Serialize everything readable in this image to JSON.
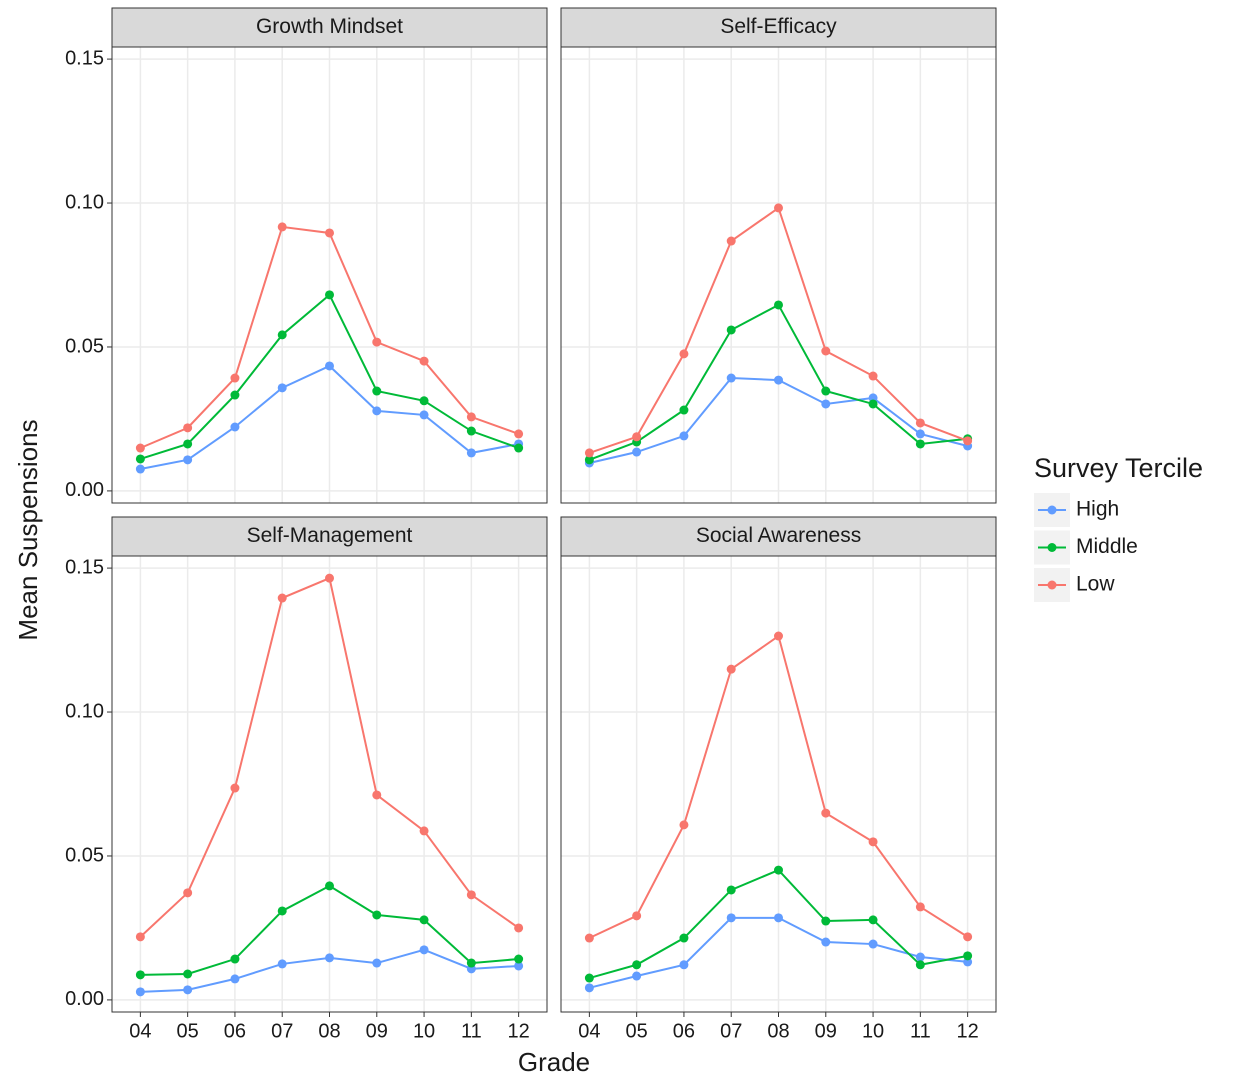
{
  "y_label": "Mean Suspensions",
  "x_label": "Grade",
  "legend_title": "Survey Tercile",
  "legend": "right",
  "chart_data": [
    {
      "type": "line",
      "title": "Growth Mindset",
      "grid": true,
      "categories": [
        "04",
        "05",
        "06",
        "07",
        "08",
        "09",
        "10",
        "11",
        "12"
      ],
      "ylim": [
        -0.0042,
        0.1542
      ],
      "yticks": [
        {
          "value": 0,
          "label": "0.00"
        },
        {
          "value": 0.05,
          "label": "0.05"
        },
        {
          "value": 0.1,
          "label": "0.10"
        },
        {
          "value": 0.15,
          "label": "0.15"
        }
      ],
      "series": [
        {
          "name": "High",
          "color": "#619CFF",
          "values": [
            0.0076,
            0.0108,
            0.0222,
            0.0358,
            0.0434,
            0.0278,
            0.0264,
            0.0132,
            0.0163
          ]
        },
        {
          "name": "Middle",
          "color": "#00BA38",
          "values": [
            0.0111,
            0.0163,
            0.0333,
            0.0542,
            0.0681,
            0.0347,
            0.0313,
            0.0208,
            0.0149
          ]
        },
        {
          "name": "Low",
          "color": "#F8766D",
          "values": [
            0.0149,
            0.0219,
            0.0392,
            0.0917,
            0.0896,
            0.0517,
            0.0451,
            0.0257,
            0.0198
          ]
        }
      ]
    },
    {
      "type": "line",
      "title": "Self-Efficacy",
      "grid": true,
      "categories": [
        "04",
        "05",
        "06",
        "07",
        "08",
        "09",
        "10",
        "11",
        "12"
      ],
      "ylim": [
        -0.0042,
        0.1542
      ],
      "yticks": [
        {
          "value": 0,
          "label": "0.00"
        },
        {
          "value": 0.05,
          "label": "0.05"
        },
        {
          "value": 0.1,
          "label": "0.10"
        },
        {
          "value": 0.15,
          "label": "0.15"
        }
      ],
      "series": [
        {
          "name": "High",
          "color": "#619CFF",
          "values": [
            0.0097,
            0.0135,
            0.0191,
            0.0392,
            0.0385,
            0.0302,
            0.0323,
            0.0198,
            0.0156
          ]
        },
        {
          "name": "Middle",
          "color": "#00BA38",
          "values": [
            0.0108,
            0.017,
            0.0281,
            0.0559,
            0.0646,
            0.0347,
            0.0302,
            0.0163,
            0.0181
          ]
        },
        {
          "name": "Low",
          "color": "#F8766D",
          "values": [
            0.0132,
            0.0188,
            0.0476,
            0.0868,
            0.0983,
            0.0486,
            0.0399,
            0.0236,
            0.0174
          ]
        }
      ]
    },
    {
      "type": "line",
      "title": "Self-Management",
      "grid": true,
      "categories": [
        "04",
        "05",
        "06",
        "07",
        "08",
        "09",
        "10",
        "11",
        "12"
      ],
      "ylim": [
        -0.0042,
        0.1542
      ],
      "yticks": [
        {
          "value": 0,
          "label": "0.00"
        },
        {
          "value": 0.05,
          "label": "0.05"
        },
        {
          "value": 0.1,
          "label": "0.10"
        },
        {
          "value": 0.15,
          "label": "0.15"
        }
      ],
      "series": [
        {
          "name": "High",
          "color": "#619CFF",
          "values": [
            0.0028,
            0.0035,
            0.0073,
            0.0125,
            0.0146,
            0.0128,
            0.0174,
            0.0108,
            0.0118
          ]
        },
        {
          "name": "Middle",
          "color": "#00BA38",
          "values": [
            0.0087,
            0.009,
            0.0142,
            0.0309,
            0.0396,
            0.0295,
            0.0278,
            0.0128,
            0.0142
          ]
        },
        {
          "name": "Low",
          "color": "#F8766D",
          "values": [
            0.0219,
            0.0372,
            0.0736,
            0.1396,
            0.1465,
            0.0712,
            0.0587,
            0.0365,
            0.025
          ]
        }
      ]
    },
    {
      "type": "line",
      "title": "Social Awareness",
      "grid": true,
      "categories": [
        "04",
        "05",
        "06",
        "07",
        "08",
        "09",
        "10",
        "11",
        "12"
      ],
      "ylim": [
        -0.0042,
        0.1542
      ],
      "yticks": [
        {
          "value": 0,
          "label": "0.00"
        },
        {
          "value": 0.05,
          "label": "0.05"
        },
        {
          "value": 0.1,
          "label": "0.10"
        },
        {
          "value": 0.15,
          "label": "0.15"
        }
      ],
      "series": [
        {
          "name": "High",
          "color": "#619CFF",
          "values": [
            0.0042,
            0.0083,
            0.0122,
            0.0285,
            0.0285,
            0.0201,
            0.0194,
            0.0149,
            0.0132
          ]
        },
        {
          "name": "Middle",
          "color": "#00BA38",
          "values": [
            0.0076,
            0.0122,
            0.0215,
            0.0382,
            0.0451,
            0.0274,
            0.0278,
            0.0122,
            0.0153
          ]
        },
        {
          "name": "Low",
          "color": "#F8766D",
          "values": [
            0.0215,
            0.0292,
            0.0608,
            0.1149,
            0.1264,
            0.0649,
            0.0549,
            0.0323,
            0.0219
          ]
        }
      ]
    }
  ]
}
